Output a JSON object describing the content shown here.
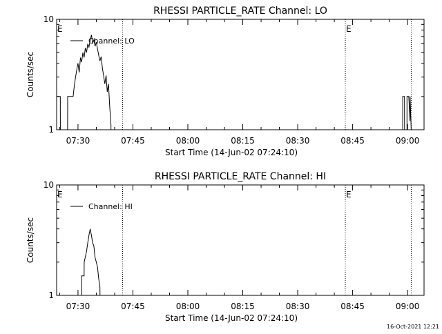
{
  "chart_data": [
    {
      "type": "line",
      "title": "RHESSI PARTICLE_RATE Channel: LO",
      "xlabel": "Start Time (14-Jun-02 07:24:10)",
      "ylabel": "Counts/sec",
      "y_scale": "log",
      "ylim": [
        1,
        10
      ],
      "y_tick_labels": [
        "1",
        "10"
      ],
      "xlim": [
        "07:24:10",
        "09:04:30"
      ],
      "x_tick_labels": [
        "07:30",
        "07:45",
        "08:00",
        "08:15",
        "08:30",
        "08:45",
        "09:00"
      ],
      "legend": {
        "entries": [
          "Channel: LO"
        ],
        "placement": "top-left"
      },
      "grid": false,
      "markers": [
        {
          "label": "E",
          "time": "07:24:10"
        },
        {
          "label": "E",
          "time": "08:43:00"
        }
      ],
      "dotted_lines": [
        "07:42:10",
        "08:43:00",
        "09:01:00"
      ],
      "series": [
        {
          "name": "Channel: LO",
          "x": [
            "07:24:10",
            "07:25:10",
            "07:25:11",
            "07:26:00",
            "07:27:10",
            "07:27:11",
            "07:28:10",
            "07:28:40",
            "07:29:00",
            "07:29:20",
            "07:29:40",
            "07:30:00",
            "07:30:20",
            "07:30:40",
            "07:31:00",
            "07:31:20",
            "07:31:40",
            "07:32:00",
            "07:32:20",
            "07:32:40",
            "07:33:00",
            "07:33:20",
            "07:33:40",
            "07:34:00",
            "07:34:20",
            "07:34:40",
            "07:35:00",
            "07:35:20",
            "07:35:40",
            "07:36:00",
            "07:36:20",
            "07:36:40",
            "07:37:00",
            "07:37:20",
            "07:37:40",
            "07:38:00",
            "07:38:20",
            "07:38:40",
            "07:39:00",
            "07:39:01",
            "08:58:40",
            "08:58:41",
            "08:59:10",
            "08:59:11",
            "08:59:50",
            "08:59:51",
            "09:00:20",
            "09:00:40",
            "09:00:41",
            "09:01:00"
          ],
          "y": [
            2,
            2,
            1,
            1,
            1,
            2,
            2,
            2,
            2.5,
            3,
            3.5,
            4,
            3.3,
            4.5,
            4.1,
            5,
            4.5,
            5.5,
            5,
            6,
            5.6,
            6.5,
            7.2,
            6.1,
            6.5,
            5.7,
            6.2,
            5.4,
            4.7,
            4.2,
            4.6,
            3.6,
            3.1,
            2.6,
            3.1,
            2.2,
            2.6,
            1.6,
            1.1,
            1,
            1,
            2,
            2,
            1,
            1,
            2,
            2,
            1.2,
            2,
            1
          ]
        }
      ]
    },
    {
      "type": "line",
      "title": "RHESSI PARTICLE_RATE Channel: HI",
      "xlabel": "Start Time (14-Jun-02 07:24:10)",
      "ylabel": "Counts/sec",
      "y_scale": "log",
      "ylim": [
        1,
        10
      ],
      "y_tick_labels": [
        "1",
        "10"
      ],
      "xlim": [
        "07:24:10",
        "09:04:30"
      ],
      "x_tick_labels": [
        "07:30",
        "07:45",
        "08:00",
        "08:15",
        "08:30",
        "08:45",
        "09:00"
      ],
      "legend": {
        "entries": [
          "Channel: HI"
        ],
        "placement": "top-left"
      },
      "grid": false,
      "markers": [
        {
          "label": "E",
          "time": "07:24:10"
        },
        {
          "label": "E",
          "time": "08:43:00"
        }
      ],
      "dotted_lines": [
        "07:42:10",
        "08:43:00",
        "09:01:00"
      ],
      "series": [
        {
          "name": "Channel: HI",
          "x": [
            "07:31:00",
            "07:31:01",
            "07:31:40",
            "07:31:41",
            "07:32:20",
            "07:32:40",
            "07:33:00",
            "07:33:20",
            "07:33:40",
            "07:34:00",
            "07:34:20",
            "07:34:40",
            "07:35:00",
            "07:35:20",
            "07:35:40",
            "07:36:00",
            "07:36:01"
          ],
          "y": [
            1,
            1.5,
            1.5,
            2,
            2.5,
            3,
            3.5,
            4,
            3.5,
            3,
            2.8,
            2.2,
            2,
            1.8,
            1.4,
            1.2,
            1
          ]
        }
      ]
    }
  ],
  "footer": {
    "timestamp": "16-Oct-2021 12:21"
  }
}
